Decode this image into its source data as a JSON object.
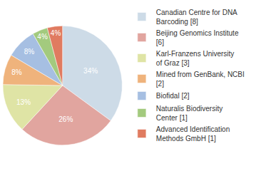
{
  "chart_data": {
    "type": "pie",
    "categories": [
      "Canadian Centre for DNA Barcoding [8]",
      "Beijing Genomics Institute [6]",
      "Karl-Franzens University of Graz [3]",
      "Mined from GenBank, NCBI [2]",
      "Biofidal [2]",
      "Naturalis Biodiversity Center [1]",
      "Advanced Identification Methods GmbH [1]"
    ],
    "values": [
      34,
      26,
      13,
      8,
      8,
      4,
      4
    ],
    "value_labels": [
      "34%",
      "26%",
      "13%",
      "8%",
      "8%",
      "4%",
      "4%"
    ],
    "colors": [
      "#cddbe7",
      "#e1a59f",
      "#dfe4a5",
      "#efb37c",
      "#a6bfe2",
      "#a3ca7e",
      "#e07b60"
    ],
    "data_labels": true,
    "legend": "right"
  }
}
